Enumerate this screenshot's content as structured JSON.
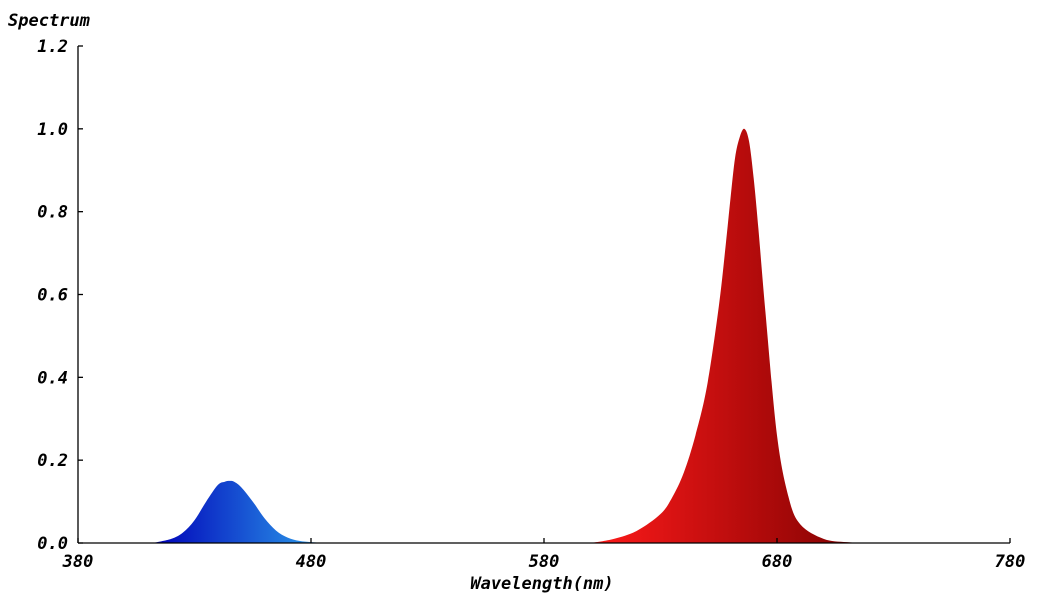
{
  "chart_data": {
    "type": "area",
    "title": "",
    "ylabel": "Spectrum",
    "xlabel": "Wavelength(nm)",
    "xlim": [
      380,
      780
    ],
    "ylim": [
      0,
      1.2
    ],
    "xticks": [
      "380",
      "480",
      "580",
      "680",
      "780"
    ],
    "yticks": [
      "0.0",
      "0.2",
      "0.4",
      "0.6",
      "0.8",
      "1.0",
      "1.2"
    ],
    "grid": false,
    "legend": "none",
    "series": [
      {
        "color_start": "#0000b8",
        "color_end": "#2fa8ee",
        "x": [
          412,
          420,
          425,
          430,
          435,
          440,
          443,
          445,
          447,
          450,
          455,
          460,
          465,
          470,
          475,
          480,
          485,
          490
        ],
        "y": [
          0.0,
          0.01,
          0.025,
          0.055,
          0.1,
          0.14,
          0.148,
          0.15,
          0.148,
          0.135,
          0.1,
          0.06,
          0.03,
          0.013,
          0.005,
          0.002,
          0.0005,
          0.0
        ]
      },
      {
        "color_start": "#ff1a1a",
        "color_end": "#7a0000",
        "x": [
          600,
          610,
          620,
          630,
          635,
          640,
          645,
          650,
          655,
          658,
          660,
          662,
          664,
          666,
          668,
          670,
          672,
          675,
          680,
          685,
          690,
          700,
          710,
          722
        ],
        "y": [
          0.0,
          0.01,
          0.03,
          0.07,
          0.11,
          0.17,
          0.26,
          0.38,
          0.57,
          0.72,
          0.83,
          0.93,
          0.98,
          1.0,
          0.97,
          0.88,
          0.76,
          0.56,
          0.26,
          0.11,
          0.045,
          0.01,
          0.002,
          0.0
        ]
      }
    ]
  }
}
